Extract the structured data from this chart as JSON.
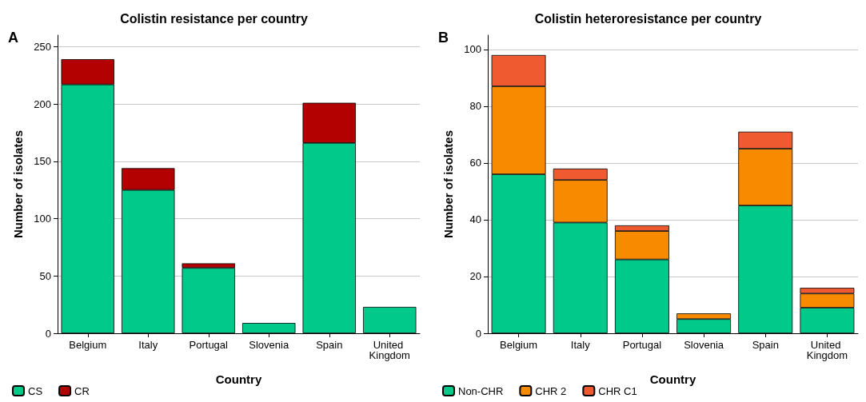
{
  "chart_data": [
    {
      "type": "bar",
      "title": "Colistin resistance per country",
      "xlabel": "Country",
      "ylabel": "Number of isolates",
      "annotations": [
        "A"
      ],
      "categories": [
        "Belgium",
        "Italy",
        "Portugal",
        "Slovenia",
        "Spain",
        "United Kingdom"
      ],
      "stacked": true,
      "series": [
        {
          "name": "CS",
          "color": "#00c98a",
          "values": [
            217,
            125,
            57,
            9,
            166,
            23
          ]
        },
        {
          "name": "CR",
          "color": "#b30000",
          "values": [
            22,
            19,
            4,
            0,
            35,
            0
          ]
        }
      ],
      "ylim": [
        0,
        260
      ],
      "yticks": [
        0,
        50,
        100,
        150,
        200,
        250
      ],
      "grid": "y",
      "legend": "bottom left"
    },
    {
      "type": "bar",
      "title": "Colistin heteroresistance per country",
      "xlabel": "Country",
      "ylabel": "Number of isolates",
      "annotations": [
        "B"
      ],
      "categories": [
        "Belgium",
        "Italy",
        "Portugal",
        "Slovenia",
        "Spain",
        "United Kingdom"
      ],
      "stacked": true,
      "series": [
        {
          "name": "Non-CHR",
          "color": "#00c98a",
          "values": [
            56,
            39,
            26,
            5,
            45,
            9
          ]
        },
        {
          "name": "CHR 2",
          "color": "#f88a00",
          "values": [
            31,
            15,
            10,
            2,
            20,
            5
          ]
        },
        {
          "name": "CHR C1",
          "color": "#f05a30",
          "values": [
            11,
            4,
            2,
            0,
            6,
            2
          ]
        }
      ],
      "ylim": [
        0,
        105
      ],
      "yticks": [
        0,
        20,
        40,
        60,
        80,
        100
      ],
      "grid": "y",
      "legend": "bottom left"
    }
  ]
}
